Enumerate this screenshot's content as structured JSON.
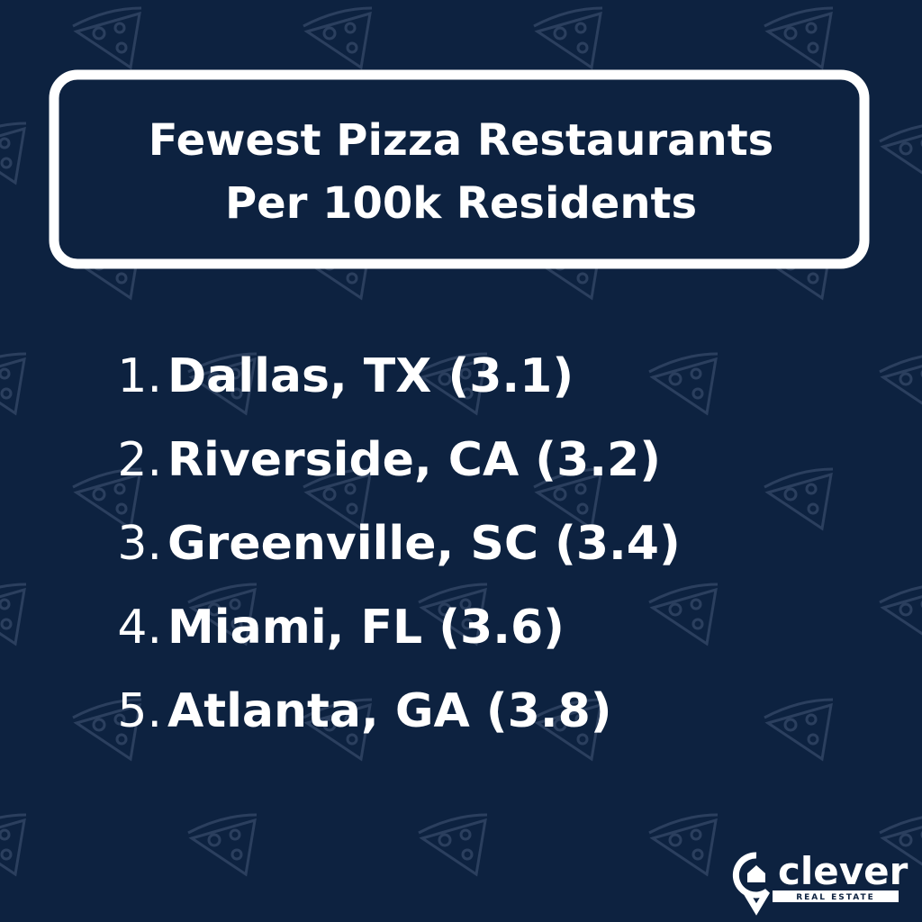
{
  "header": {
    "title_lines": [
      "Fewest Pizza Restaurants",
      "Per 100k Residents"
    ]
  },
  "list": [
    {
      "rank": "1.",
      "text": "Dallas, TX (3.1)"
    },
    {
      "rank": "2.",
      "text": "Riverside, CA (3.2)"
    },
    {
      "rank": "3.",
      "text": "Greenville, SC (3.4)"
    },
    {
      "rank": "4.",
      "text": "Miami, FL (3.6)"
    },
    {
      "rank": "5.",
      "text": "Atlanta, GA (3.8)"
    }
  ],
  "logo": {
    "name": "clever",
    "tagline": "REAL ESTATE"
  }
}
